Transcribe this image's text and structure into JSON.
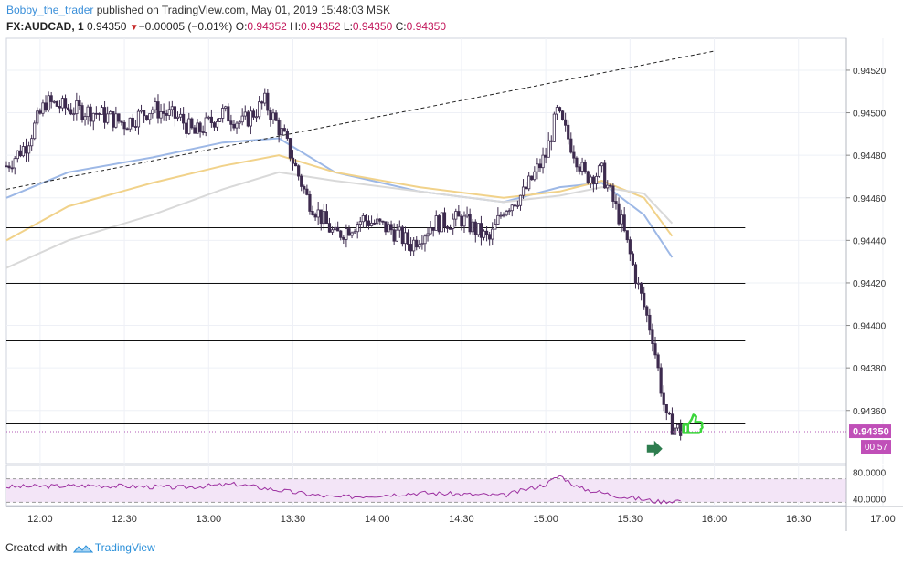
{
  "header": {
    "author": "Bobby_the_trader",
    "published_text": " published on TradingView.com, May 01, 2019 15:48:03 MSK",
    "symbol": "FX:AUDCAD, 1",
    "last_price": "0.94350",
    "change": "−0.00005 (−0.01%)",
    "o_label": "O:",
    "o_value": "0.94352",
    "h_label": "H:",
    "h_value": "0.94352",
    "l_label": "L:",
    "l_value": "0.94350",
    "c_label": "C:",
    "c_value": "0.94350"
  },
  "footer": {
    "created_with": "Created with",
    "brand": "TradingView"
  },
  "colors": {
    "candle": "#3d2b4e",
    "ma_fast": "#9db8e6",
    "ma_mid": "#f1d28a",
    "ma_slow": "#d9d9d9",
    "price_line": "#b05ab5",
    "price_tag": "#c04fb8",
    "rsi_fill": "#f3e5f7",
    "rsi_line": "#9c2fa0",
    "grid": "#eef0f6"
  },
  "chart_data": {
    "type": "candlestick",
    "symbol": "FX:AUDCAD",
    "interval": "1",
    "ylim": [
      0.94335,
      0.94535
    ],
    "y_ticks": [
      "0.94360",
      "0.94380",
      "0.94400",
      "0.94420",
      "0.94440",
      "0.94460",
      "0.94480",
      "0.94500",
      "0.94520"
    ],
    "x_ticks": [
      "12:00",
      "12:30",
      "13:00",
      "13:30",
      "14:00",
      "14:30",
      "15:00",
      "15:30",
      "16:00",
      "16:30",
      "17:00"
    ],
    "x_range": [
      "11:48",
      "16:47"
    ],
    "current_price": "0.94350",
    "countdown": "00:57",
    "ohlc_path": [
      [
        "11:48",
        0.94475
      ],
      [
        "11:55",
        0.94485
      ],
      [
        "12:02",
        0.94505
      ],
      [
        "12:10",
        0.94502
      ],
      [
        "12:20",
        0.945
      ],
      [
        "12:30",
        0.94495
      ],
      [
        "12:40",
        0.94502
      ],
      [
        "12:50",
        0.94497
      ],
      [
        "12:55",
        0.9449
      ],
      [
        "13:05",
        0.945
      ],
      [
        "13:12",
        0.94495
      ],
      [
        "13:20",
        0.94505
      ],
      [
        "13:27",
        0.94488
      ],
      [
        "13:35",
        0.9446
      ],
      [
        "13:45",
        0.94442
      ],
      [
        "13:55",
        0.9445
      ],
      [
        "14:05",
        0.94445
      ],
      [
        "14:12",
        0.94438
      ],
      [
        "14:20",
        0.94448
      ],
      [
        "14:30",
        0.9445
      ],
      [
        "14:40",
        0.9444
      ],
      [
        "14:45",
        0.94455
      ],
      [
        "14:52",
        0.94462
      ],
      [
        "15:00",
        0.9448
      ],
      [
        "15:04",
        0.945
      ],
      [
        "15:08",
        0.94488
      ],
      [
        "15:14",
        0.9447
      ],
      [
        "15:20",
        0.94472
      ],
      [
        "15:27",
        0.94448
      ],
      [
        "15:33",
        0.94418
      ],
      [
        "15:38",
        0.94395
      ],
      [
        "15:43",
        0.94355
      ],
      [
        "15:48",
        0.9435
      ]
    ],
    "moving_averages": [
      {
        "color": "ma_fast",
        "points": [
          [
            "11:48",
            0.9446
          ],
          [
            "12:10",
            0.94472
          ],
          [
            "12:40",
            0.94479
          ],
          [
            "13:05",
            0.94486
          ],
          [
            "13:25",
            0.94488
          ],
          [
            "13:45",
            0.94472
          ],
          [
            "14:15",
            0.94463
          ],
          [
            "14:45",
            0.94458
          ],
          [
            "15:05",
            0.94465
          ],
          [
            "15:20",
            0.94467
          ],
          [
            "15:35",
            0.94452
          ],
          [
            "15:45",
            0.94432
          ]
        ]
      },
      {
        "color": "ma_mid",
        "points": [
          [
            "11:48",
            0.9444
          ],
          [
            "12:10",
            0.94456
          ],
          [
            "12:40",
            0.94467
          ],
          [
            "13:05",
            0.94475
          ],
          [
            "13:25",
            0.9448
          ],
          [
            "13:45",
            0.94472
          ],
          [
            "14:15",
            0.94465
          ],
          [
            "14:45",
            0.9446
          ],
          [
            "15:05",
            0.94463
          ],
          [
            "15:20",
            0.94468
          ],
          [
            "15:35",
            0.9446
          ],
          [
            "15:45",
            0.94442
          ]
        ]
      },
      {
        "color": "ma_slow",
        "points": [
          [
            "11:48",
            0.94427
          ],
          [
            "12:10",
            0.9444
          ],
          [
            "12:40",
            0.94452
          ],
          [
            "13:05",
            0.94464
          ],
          [
            "13:25",
            0.94472
          ],
          [
            "13:45",
            0.94468
          ],
          [
            "14:15",
            0.94463
          ],
          [
            "14:45",
            0.94458
          ],
          [
            "15:05",
            0.94461
          ],
          [
            "15:20",
            0.94465
          ],
          [
            "15:35",
            0.94462
          ],
          [
            "15:45",
            0.94448
          ]
        ]
      }
    ],
    "trendline": {
      "from": [
        "11:48",
        0.94464
      ],
      "to": [
        "16:00",
        0.94529
      ]
    },
    "horizontal_levels": [
      0.94446,
      0.9442,
      0.94393,
      0.94354
    ],
    "rsi": {
      "ylim": [
        30,
        90
      ],
      "ticks": [
        "80.0000",
        "40.0000"
      ],
      "band": [
        70,
        35
      ],
      "path": [
        [
          "11:48",
          58
        ],
        [
          "12:20",
          60
        ],
        [
          "12:50",
          57
        ],
        [
          "13:10",
          62
        ],
        [
          "13:30",
          50
        ],
        [
          "13:45",
          42
        ],
        [
          "14:15",
          49
        ],
        [
          "14:45",
          45
        ],
        [
          "15:00",
          62
        ],
        [
          "15:05",
          75
        ],
        [
          "15:12",
          56
        ],
        [
          "15:25",
          45
        ],
        [
          "15:40",
          36
        ],
        [
          "15:48",
          38
        ]
      ]
    }
  }
}
